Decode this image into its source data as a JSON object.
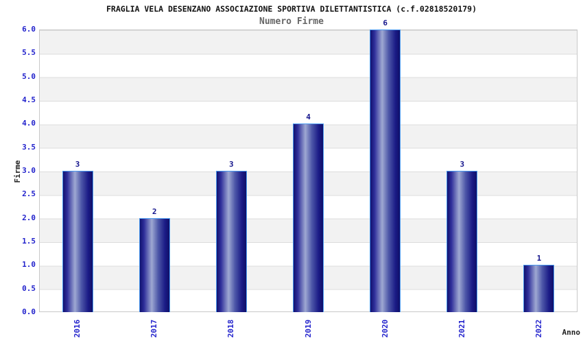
{
  "chart": {
    "title": "FRAGLIA VELA DESENZANO ASSOCIAZIONE SPORTIVA DILETTANTISTICA (c.f.02818520179)",
    "subtitle": "Numero Firme",
    "ylabel": "Firme",
    "xlabel": "Anno"
  },
  "chart_data": {
    "type": "bar",
    "title": "Numero Firme",
    "categories": [
      "2016",
      "2017",
      "2018",
      "2019",
      "2020",
      "2021",
      "2022"
    ],
    "values": [
      3,
      2,
      3,
      4,
      6,
      3,
      1
    ],
    "xlabel": "Anno",
    "ylabel": "Firme",
    "ylim": [
      0,
      6
    ],
    "ytick_step": 0.5,
    "yticks": [
      "0.0",
      "0.5",
      "1.0",
      "1.5",
      "2.0",
      "2.5",
      "3.0",
      "3.5",
      "4.0",
      "4.5",
      "5.0",
      "5.5",
      "6.0"
    ],
    "grid": true,
    "legend_position": "none",
    "band_fill": "alternating-horizontal",
    "colors": {
      "bar_gradient": [
        "#12126f",
        "#2e2e9a",
        "#9ea8d2",
        "#4d57a8",
        "#1b1b86",
        "#0f0f68"
      ],
      "bar_border": "#4a9af0",
      "tick_label": "#2222cc",
      "value_label": "#14148c",
      "band_gray": "#f2f2f2",
      "band_white": "#ffffff",
      "gridline": "#dcdcdc",
      "plot_border": "#c8c8c8",
      "title_color": "#111111",
      "subtitle_color": "#666666",
      "axis_title_color": "#222222"
    }
  }
}
